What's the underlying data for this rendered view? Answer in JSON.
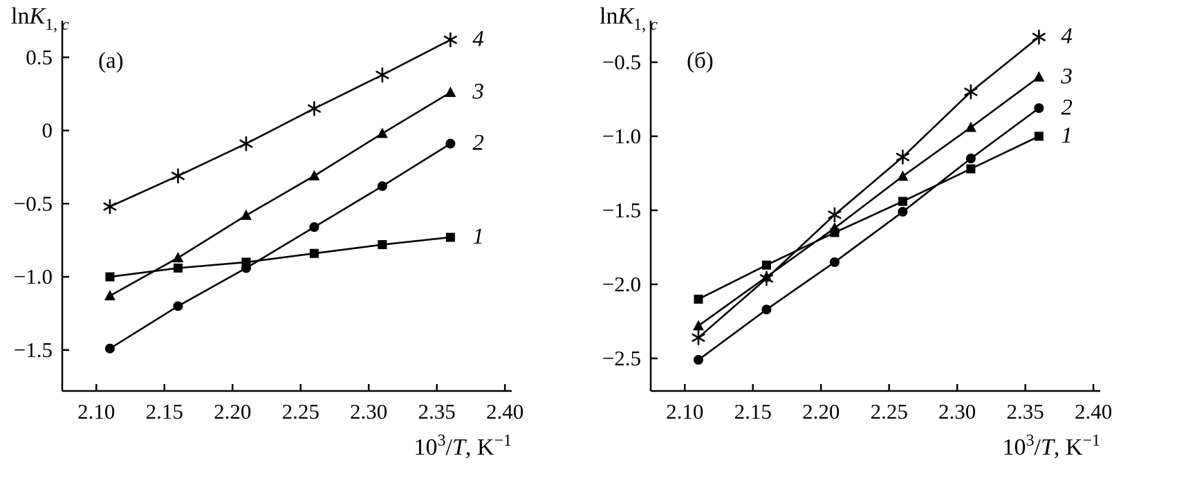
{
  "page": {
    "background": "#ffffff",
    "ink": "#000000"
  },
  "chart_data": [
    {
      "type": "line",
      "panel_label": "(а)",
      "ylabel": "lnK1,c",
      "ylabel_parts": {
        "pre": "ln",
        "var": "K",
        "sub_num": "1, ",
        "sub_var": "c"
      },
      "xlabel": "10^3/T, K^-1",
      "xlabel_parts": {
        "base": "10",
        "exp": "3",
        "slash": "/",
        "var": "T",
        "rest": ", K",
        "exp2": "−1"
      },
      "xlim": [
        2.075,
        2.405
      ],
      "ylim": [
        -1.78,
        0.75
      ],
      "xtick_values": [
        2.1,
        2.15,
        2.2,
        2.25,
        2.3,
        2.35,
        2.4
      ],
      "xtick_labels": [
        "2.10",
        "2.15",
        "2.20",
        "2.25",
        "2.30",
        "2.35",
        "2.40"
      ],
      "ytick_values": [
        0.5,
        0,
        -0.5,
        -1.0,
        -1.5
      ],
      "ytick_labels": [
        "0.5",
        "0",
        "−0.5",
        "−1.0",
        "−1.5"
      ],
      "x": [
        2.11,
        2.16,
        2.21,
        2.26,
        2.31,
        2.36
      ],
      "series": [
        {
          "name": "1",
          "marker": "square",
          "values": [
            -1.0,
            -0.94,
            -0.9,
            -0.84,
            -0.78,
            -0.73
          ]
        },
        {
          "name": "2",
          "marker": "circle",
          "values": [
            -1.49,
            -1.2,
            -0.94,
            -0.66,
            -0.38,
            -0.09
          ]
        },
        {
          "name": "3",
          "marker": "triangle",
          "values": [
            -1.13,
            -0.87,
            -0.58,
            -0.31,
            -0.02,
            0.26
          ]
        },
        {
          "name": "4",
          "marker": "asterisk",
          "values": [
            -0.52,
            -0.31,
            -0.09,
            0.15,
            0.38,
            0.62
          ]
        }
      ],
      "legend_position": "italic-number-at-line-end",
      "grid": false
    },
    {
      "type": "line",
      "panel_label": "(б)",
      "ylabel": "lnK1,c",
      "ylabel_parts": {
        "pre": "ln",
        "var": "K",
        "sub_num": "1, ",
        "sub_var": "c"
      },
      "xlabel": "10^3/T, K^-1",
      "xlabel_parts": {
        "base": "10",
        "exp": "3",
        "slash": "/",
        "var": "T",
        "rest": ", K",
        "exp2": "−1"
      },
      "xlim": [
        2.075,
        2.405
      ],
      "ylim": [
        -2.72,
        -0.22
      ],
      "xtick_values": [
        2.1,
        2.15,
        2.2,
        2.25,
        2.3,
        2.35,
        2.4
      ],
      "xtick_labels": [
        "2.10",
        "2.15",
        "2.20",
        "2.25",
        "2.30",
        "2.35",
        "2.40"
      ],
      "ytick_values": [
        -0.5,
        -1.0,
        -1.5,
        -2.0,
        -2.5
      ],
      "ytick_labels": [
        "−0.5",
        "−1.0",
        "−1.5",
        "−2.0",
        "−2.5"
      ],
      "x": [
        2.11,
        2.16,
        2.21,
        2.26,
        2.31,
        2.36
      ],
      "series": [
        {
          "name": "1",
          "marker": "square",
          "values": [
            -2.1,
            -1.87,
            -1.65,
            -1.44,
            -1.22,
            -1.0
          ]
        },
        {
          "name": "2",
          "marker": "circle",
          "values": [
            -2.51,
            -2.17,
            -1.85,
            -1.51,
            -1.15,
            -0.81
          ]
        },
        {
          "name": "3",
          "marker": "triangle",
          "values": [
            -2.28,
            -1.95,
            -1.62,
            -1.27,
            -0.94,
            -0.6
          ]
        },
        {
          "name": "4",
          "marker": "asterisk",
          "values": [
            -2.36,
            -1.96,
            -1.53,
            -1.14,
            -0.7,
            -0.33
          ]
        }
      ],
      "legend_position": "italic-number-at-line-end",
      "grid": false
    }
  ]
}
